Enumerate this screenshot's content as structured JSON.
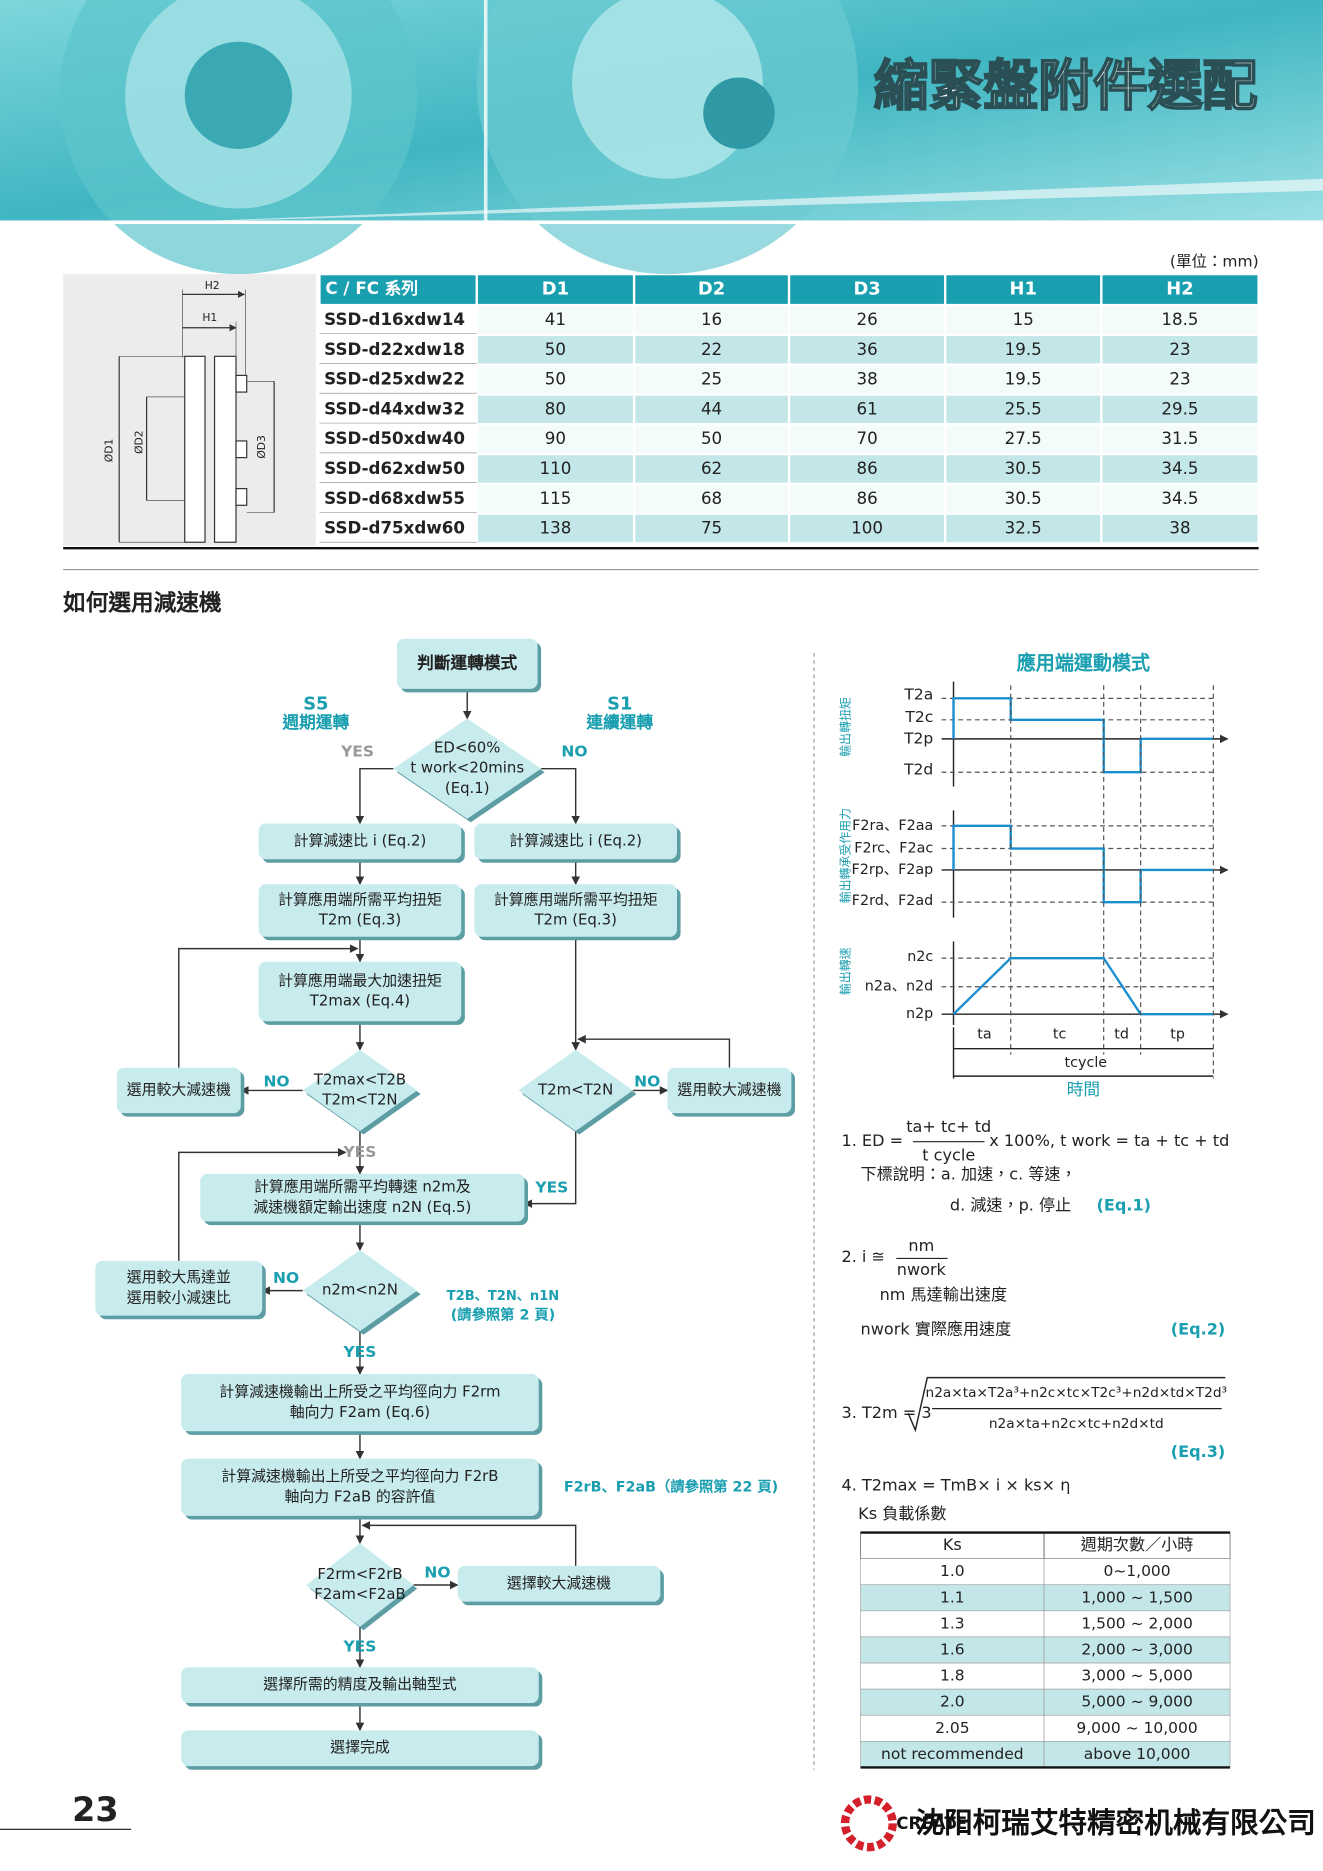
{
  "header": {
    "title": "縮緊盤附件選配"
  },
  "table": {
    "unit": "(單位：mm)",
    "columns": [
      "C / FC 系列",
      "D1",
      "D2",
      "D3",
      "H1",
      "H2"
    ],
    "rows": [
      [
        "SSD-d16xdw14",
        41,
        16,
        26,
        15,
        18.5
      ],
      [
        "SSD-d22xdw18",
        50,
        22,
        36,
        19.5,
        23
      ],
      [
        "SSD-d25xdw22",
        50,
        25,
        38,
        19.5,
        23
      ],
      [
        "SSD-d44xdw32",
        80,
        44,
        61,
        25.5,
        29.5
      ],
      [
        "SSD-d50xdw40",
        90,
        50,
        70,
        27.5,
        31.5
      ],
      [
        "SSD-d62xdw50",
        110,
        62,
        86,
        30.5,
        34.5
      ],
      [
        "SSD-d68xdw55",
        115,
        68,
        86,
        30.5,
        34.5
      ],
      [
        "SSD-d75xdw60",
        138,
        75,
        100,
        32.5,
        38
      ]
    ]
  },
  "drawing": {
    "labels": [
      "H2",
      "H1",
      "ØD1",
      "ØD2",
      "ØD3"
    ]
  },
  "section_title": "如何選用減速機",
  "flowchart": {
    "nodes": [
      {
        "lines": [
          "判斷運轉模式"
        ]
      },
      {
        "lines": [
          "ED<60%",
          "t work<20mins",
          "(Eq.1)"
        ]
      },
      {
        "lines": [
          "計算減速比 i (Eq.2)"
        ]
      },
      {
        "lines": [
          "計算減速比 i (Eq.2)"
        ]
      },
      {
        "lines": [
          "計算應用端所需平均扭矩",
          "T2m (Eq.3)"
        ]
      },
      {
        "lines": [
          "計算應用端所需平均扭矩",
          "T2m (Eq.3)"
        ]
      },
      {
        "lines": [
          "計算應用端最大加速扭矩",
          "T2max (Eq.4)"
        ]
      },
      {
        "lines": [
          "T2max<T2B",
          "T2m<T2N"
        ]
      },
      {
        "lines": [
          "選用較大減速機"
        ]
      },
      {
        "lines": [
          "T2m<T2N"
        ]
      },
      {
        "lines": [
          "選用較大減速機"
        ]
      },
      {
        "lines": [
          "計算應用端所需平均轉速 n2m及",
          "減速機額定輸出速度 n2N (Eq.5)"
        ]
      },
      {
        "lines": [
          "n2m<n2N"
        ]
      },
      {
        "lines": [
          "選用較大馬達並",
          "選用較小減速比"
        ]
      },
      {
        "lines": [
          "計算減速機輸出上所受之平均徑向力 F2rm",
          "軸向力 F2am (Eq.6)"
        ]
      },
      {
        "lines": [
          "計算減速機輸出上所受之平均徑向力 F2rB",
          "軸向力 F2aB 的容許值"
        ]
      },
      {
        "lines": [
          "F2rm<F2rB",
          "F2am<F2aB"
        ]
      },
      {
        "lines": [
          "選擇較大減速機"
        ]
      },
      {
        "lines": [
          "選擇所需的精度及輸出軸型式"
        ]
      },
      {
        "lines": [
          "選擇完成"
        ]
      }
    ],
    "labels": [
      "S5",
      "週期運轉",
      "S1",
      "連續運轉",
      "YES",
      "NO",
      "NO",
      "NO",
      "YES",
      "YES",
      "NO",
      "T2B、T2N、n1N",
      "(請參照第 2 頁)",
      "YES",
      "F2rB、F2aB（請參照第 22 頁)",
      "NO",
      "YES"
    ]
  },
  "motion": {
    "title": "應用端運動模式",
    "axis_titles": [
      "輸出轉扭矩",
      "輸出轉承受作用力",
      "輸出轉速"
    ],
    "torque_labels": [
      "T2a",
      "T2c",
      "T2p",
      "T2d"
    ],
    "force_labels": [
      "F2ra、F2aa",
      "F2rc、F2ac",
      "F2rp、F2ap",
      "F2rd、F2ad"
    ],
    "speed_labels": [
      "n2c",
      "n2a、n2d",
      "n2p"
    ],
    "time_labels": [
      "ta",
      "tc",
      "td",
      "tp"
    ],
    "cycle_label": "tcycle",
    "x_title": "時間"
  },
  "formulas": [
    "1. ED =",
    "ta+ tc+ td",
    "t cycle",
    "x 100%, t work = ta + tc + td",
    "下標說明：a. 加速，c. 等速，",
    "d. 減速，p. 停止",
    "(Eq.1)",
    "2. i ≅",
    "nm",
    "nwork",
    "nm  馬達輸出速度",
    "nwork  實際應用速度",
    "(Eq.2)",
    "3. T2m = 3",
    "n2a×ta×T2a³+n2c×tc×T2c³+n2d×td×T2d³",
    "n2a×ta+n2c×tc+n2d×td",
    "(Eq.3)",
    "4. T2max = TmB× i × ks× η",
    "Ks 負載係數"
  ],
  "ks_table": {
    "columns": [
      "Ks",
      "週期次數／小時"
    ],
    "rows": [
      [
        "1.0",
        "0~1,000"
      ],
      [
        "1.1",
        "1,000 ~ 1,500"
      ],
      [
        "1.3",
        "1,500 ~ 2,000"
      ],
      [
        "1.6",
        "2,000 ~ 3,000"
      ],
      [
        "1.8",
        "3,000 ~ 5,000"
      ],
      [
        "2.0",
        "5,000 ~ 9,000"
      ],
      [
        "2.05",
        "9,000 ~ 10,000"
      ],
      [
        "not recommended",
        "above 10,000"
      ]
    ]
  },
  "footer": {
    "page_number": "23",
    "logo": "CREATE",
    "company": "沈阳柯瑞艾特精密机械有限公司"
  }
}
